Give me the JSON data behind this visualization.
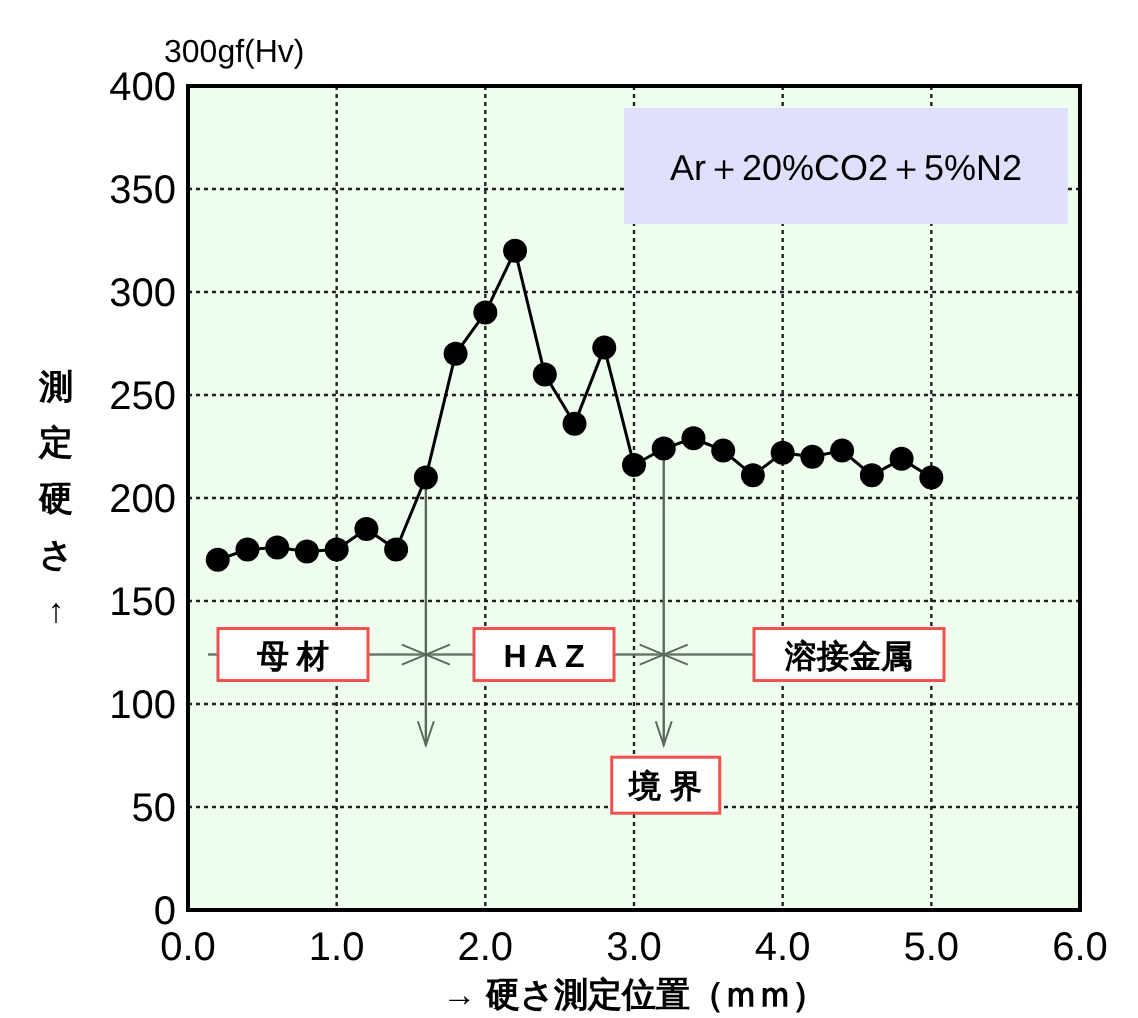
{
  "chart_data": {
    "type": "line",
    "xlabel": "→ 硬さ測定位置（ｍｍ）",
    "ylabel": "測定硬さ↑",
    "x": [
      0.2,
      0.4,
      0.6,
      0.8,
      1.0,
      1.2,
      1.4,
      1.6,
      1.8,
      2.0,
      2.2,
      2.4,
      2.6,
      2.8,
      3.0,
      3.2,
      3.4,
      3.6,
      3.8,
      4.0,
      4.2,
      4.4,
      4.6,
      4.8,
      5.0
    ],
    "series": [
      {
        "color": "#000000",
        "values": [
          170,
          175,
          176,
          174,
          175,
          185,
          175,
          210,
          270,
          290,
          320,
          260,
          236,
          273,
          216,
          224,
          229,
          223,
          211,
          222,
          220,
          223,
          211,
          219,
          210
        ]
      }
    ],
    "xlim": [
      0,
      6
    ],
    "ylim": [
      0,
      400
    ],
    "xticks": [
      {
        "value": 0,
        "label": "0.0"
      },
      {
        "value": 1,
        "label": "1.0"
      },
      {
        "value": 2,
        "label": "2.0"
      },
      {
        "value": 3,
        "label": "3.0"
      },
      {
        "value": 4,
        "label": "4.0"
      },
      {
        "value": 5,
        "label": "5.0"
      },
      {
        "value": 6,
        "label": "6.0"
      }
    ],
    "yticks": [
      0,
      50,
      100,
      150,
      200,
      250,
      300,
      350,
      400
    ],
    "grid": true,
    "marker": "circle",
    "line_style": "solid",
    "ref_lines": [
      {
        "axis": "y",
        "value": 124,
        "label": null,
        "color": "#6a786a"
      },
      {
        "axis": "x",
        "value": 1.6,
        "label": null,
        "color": "#5a6a5a"
      },
      {
        "axis": "x",
        "value": 3.2,
        "label": "境 界",
        "color": "#5a6a5a"
      }
    ],
    "annotations": [
      "300gf(Hv)",
      "Ar＋20%CO2＋5%N2",
      "母 材",
      "H A Z",
      "溶接金属"
    ]
  }
}
